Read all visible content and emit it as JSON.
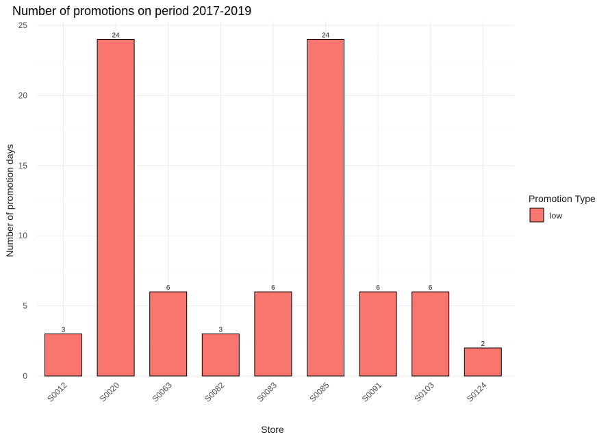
{
  "chart_data": {
    "type": "bar",
    "title": "Number of promotions on period 2017-2019",
    "xlabel": "Store",
    "ylabel": "Number of promotion days",
    "categories": [
      "S0012",
      "S0020",
      "S0063",
      "S0082",
      "S0083",
      "S0085",
      "S0091",
      "S0103",
      "S0124"
    ],
    "series": [
      {
        "name": "low",
        "values": [
          3,
          24,
          6,
          3,
          6,
          24,
          6,
          6,
          2
        ]
      }
    ],
    "ylim": [
      0,
      25
    ],
    "yticks": [
      0,
      5,
      10,
      15,
      20,
      25
    ],
    "grid": true,
    "legend": {
      "title": "Promotion Type",
      "placement": "right"
    },
    "colors": {
      "bar_fill": "#F8766D",
      "bar_stroke": "#000000"
    }
  }
}
